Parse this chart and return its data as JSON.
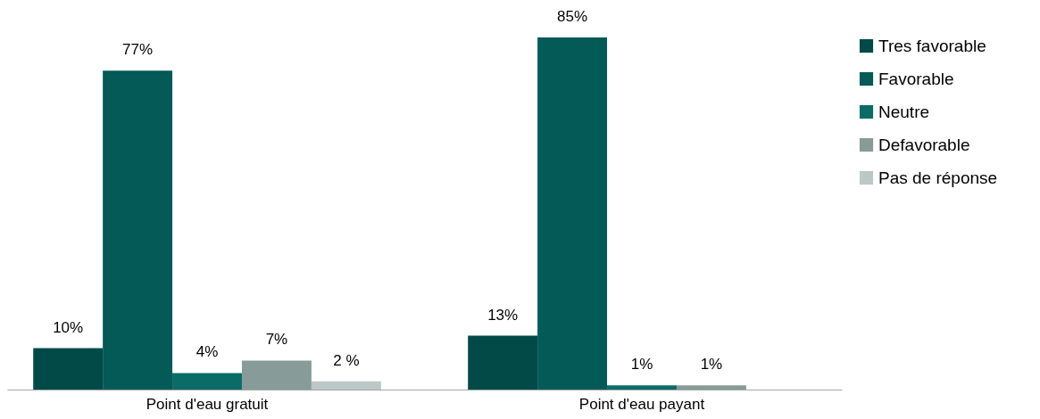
{
  "chart_data": {
    "type": "bar",
    "categories": [
      "Point d'eau gratuit",
      "Point d'eau payant"
    ],
    "series": [
      {
        "name": "Tres favorable",
        "color": "#024a48",
        "values": [
          10,
          13
        ],
        "value_labels": [
          "10%",
          "13%"
        ]
      },
      {
        "name": "Favorable",
        "color": "#035a57",
        "values": [
          77,
          85
        ],
        "value_labels": [
          "77%",
          "85%"
        ]
      },
      {
        "name": "Neutre",
        "color": "#0b6b66",
        "values": [
          4,
          1
        ],
        "value_labels": [
          "4%",
          "1%"
        ]
      },
      {
        "name": "Defavorable",
        "color": "#879c98",
        "values": [
          7,
          1
        ],
        "value_labels": [
          "7%",
          "1%"
        ]
      },
      {
        "name": "Pas de réponse",
        "color": "#bcc8c5",
        "values": [
          2,
          null
        ],
        "value_labels": [
          "2 %",
          null
        ]
      }
    ],
    "legend": "right",
    "grid": false,
    "tick_labels": "x"
  }
}
